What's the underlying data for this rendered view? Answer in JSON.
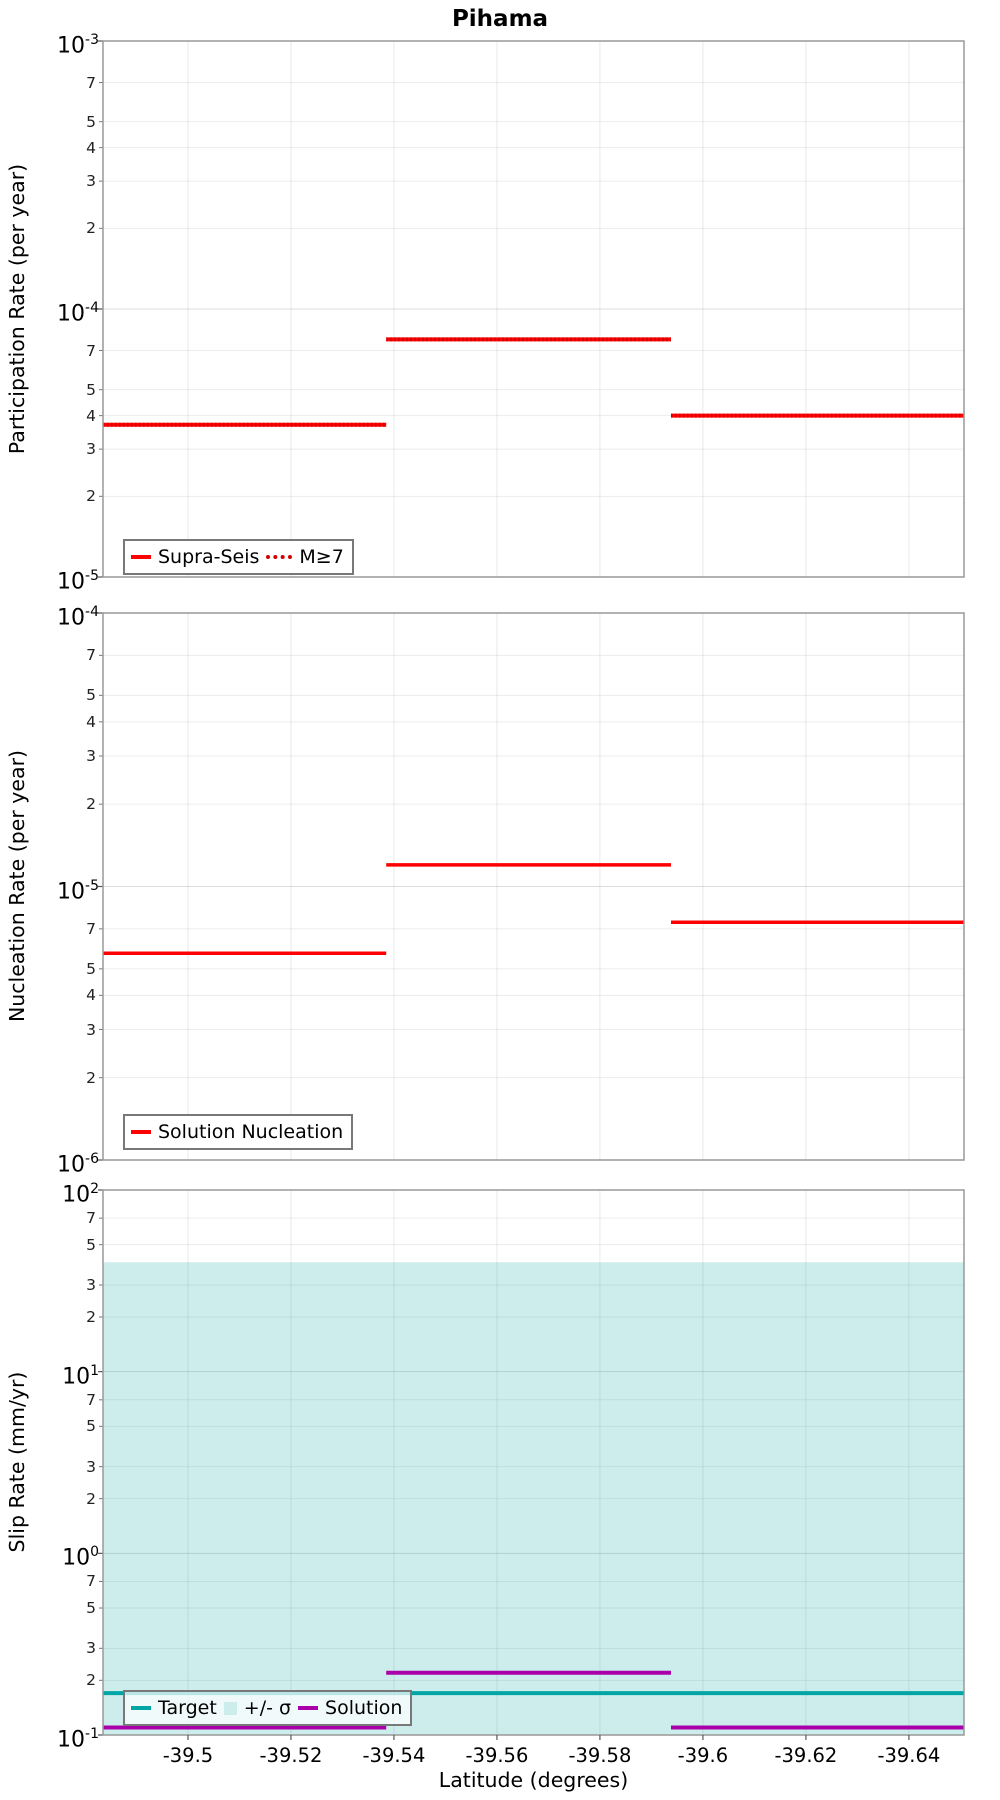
{
  "page": {
    "title": "Pihama",
    "xlabel": "Latitude (degrees)"
  },
  "x_axis": {
    "ticks": [
      -39.5,
      -39.52,
      -39.54,
      -39.56,
      -39.58,
      -39.6,
      -39.62,
      -39.64
    ],
    "section_edges": [
      -39.4835,
      -39.5385,
      -39.5938,
      -39.6507
    ],
    "reversed": true
  },
  "colors": {
    "red": "#ff0000",
    "red_dotted": "#d40000",
    "teal": "#00a5a5",
    "purple": "#aa00aa",
    "band": "#cdeded",
    "frame": "#999999",
    "grid_major": "rgba(100,100,100,0.22)",
    "grid_minor": "rgba(100,100,100,0.12)",
    "grid_vertical": "rgba(100,100,100,0.14)"
  },
  "chart_data": [
    {
      "type": "line",
      "name": "participation-rate",
      "ylabel": "Participation Rate (per year)",
      "y_top_exp": -3,
      "y_bottom_exp": -5,
      "minor_labels": [
        7,
        5,
        4,
        3,
        2
      ],
      "series": [
        {
          "id": "supra-seis",
          "name": "Supra-Seis",
          "color": "#ff0000",
          "style": "solid",
          "width": 4,
          "values": [
            3.7e-05,
            7.7e-05,
            4e-05
          ]
        },
        {
          "id": "m-ge-7",
          "name": "M≥7",
          "color": "#d40000",
          "style": "dotted",
          "width": 4,
          "values": [
            3.7e-05,
            7.7e-05,
            4e-05
          ]
        }
      ],
      "legend": [
        {
          "label": "Supra-Seis",
          "swatch": "solid",
          "color": "#ff0000"
        },
        {
          "label": "M≥7",
          "swatch": "dotted",
          "color": "#d40000"
        }
      ]
    },
    {
      "type": "line",
      "name": "nucleation-rate",
      "ylabel": "Nucleation Rate (per year)",
      "y_top_exp": -4,
      "y_bottom_exp": -6,
      "minor_labels": [
        7,
        5,
        4,
        3,
        2
      ],
      "series": [
        {
          "id": "solution-nucleation",
          "name": "Solution Nucleation",
          "color": "#ff0000",
          "style": "solid",
          "width": 3.5,
          "values": [
            5.7e-06,
            1.2e-05,
            7.4e-06
          ]
        }
      ],
      "legend": [
        {
          "label": "Solution Nucleation",
          "swatch": "solid",
          "color": "#ff0000"
        }
      ]
    },
    {
      "type": "line",
      "name": "slip-rate",
      "ylabel": "Slip Rate (mm/yr)",
      "y_top_exp": 2,
      "y_bottom_exp": -1,
      "minor_labels": [
        7,
        5,
        3,
        2
      ],
      "band": {
        "low": 0.1,
        "high": 40,
        "color": "#cdeded",
        "label": "+/- σ"
      },
      "series": [
        {
          "id": "target",
          "name": "Target",
          "color": "#00a5a5",
          "style": "solid",
          "width": 4,
          "values": [
            0.17,
            0.17,
            0.17
          ]
        },
        {
          "id": "solution",
          "name": "Solution",
          "color": "#aa00aa",
          "style": "solid",
          "width": 4,
          "values": [
            0.11,
            0.22,
            0.11
          ]
        }
      ],
      "legend": [
        {
          "label": "Target",
          "swatch": "solid",
          "color": "#00a5a5"
        },
        {
          "label": "+/- σ",
          "swatch": "patch",
          "color": "#cdeded"
        },
        {
          "label": "Solution",
          "swatch": "solid",
          "color": "#aa00aa"
        }
      ]
    }
  ]
}
